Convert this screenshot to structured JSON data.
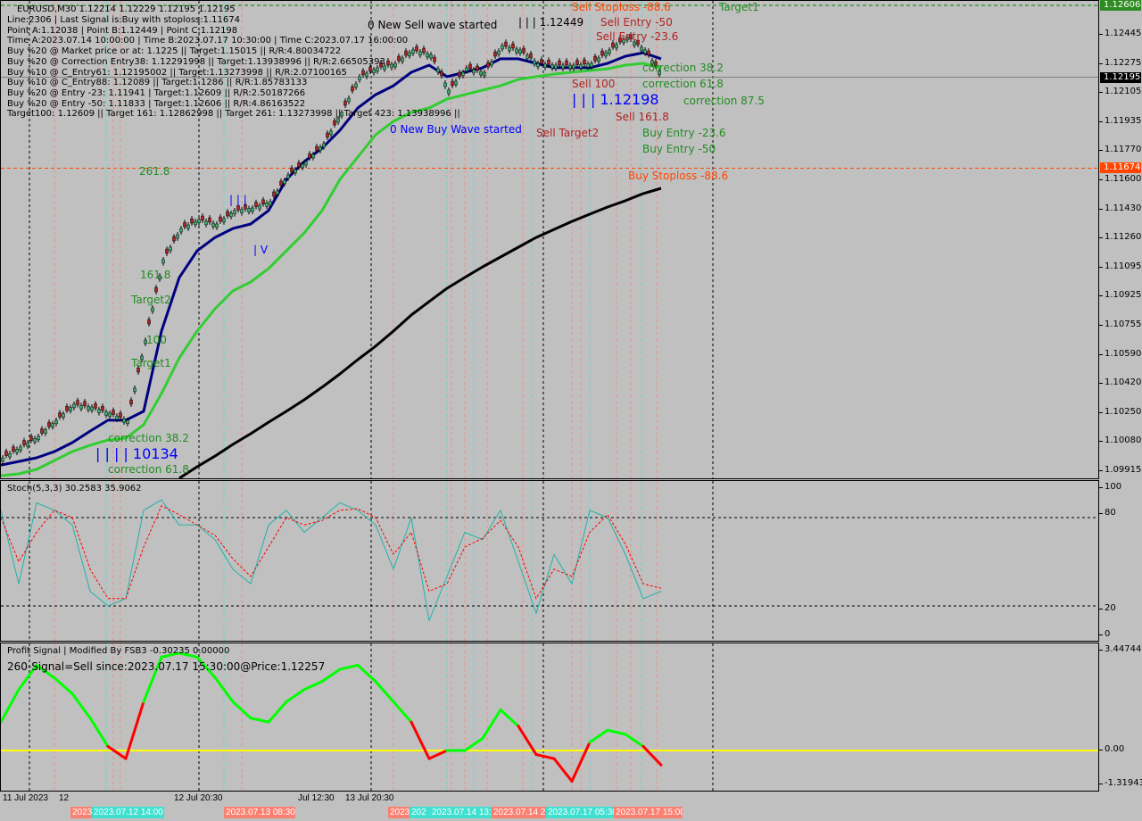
{
  "header": {
    "symbol_line": "EURUSD,M30  1.12214 1.12229 1.12195 1.12195",
    "info_lines": [
      "Line:2306 | Last Signal is:Buy with stoploss:1.11674",
      "Point A:1.12038 | Point B:1.12449 | Point C:1.12198",
      "Time A:2023.07.14 10:00:00 | Time B:2023.07.17 10:30:00 | Time C:2023.07.17 16:00:00",
      "Buy %20 @ Market price or at: 1.1225 || Target:1.15015 || R/R:4.80034722",
      "Buy %20 @ Correction Entry38: 1.12291998 || Target:1.13938996 || R/R:2.66505393",
      "Buy %10 @ C_Entry61: 1.12195002 || Target:1.13273998 || R/R:2.07100165",
      "Buy %10 @ C_Entry88: 1.12089 || Target:1.1286 || R/R:1.85783133",
      "Buy %20 @ Entry -23: 1.11941 | Target:1.12609 || R/R:2.50187266",
      "Buy %20 @ Entry -50: 1.11833 | Target:1.12606 || R/R:4.86163522",
      "Target100: 1.12609 || Target 161: 1.12862998 || Target 261: 1.13273998 || Target 423: 1.13938996 ||"
    ]
  },
  "annotations": {
    "new_sell_wave": "0 New Sell wave started",
    "new_buy_wave": "0 New Buy Wave started",
    "sell_stoploss": "Sell Stoploss -88.6",
    "target_top": "Target1",
    "sell_entry_50": "Sell Entry -50",
    "sell_entry_236": "Sell Entry -23.6",
    "correction_382_r": "correction 38.2",
    "sell_100": "Sell 100",
    "correction_618_r": "correction 61.8",
    "point_c_label": "| | | 1.12198",
    "correction_875_r": "correction 87.5",
    "sell_1618": "Sell 161.8",
    "sell_target2": "Sell Target2",
    "buy_entry_236": "Buy Entry -23.6",
    "buy_entry_50": "Buy Entry -50",
    "buy_stoploss": "Buy Stoploss -88.6",
    "fib_2618": "261.8",
    "fib_1618": "161.8",
    "target2": "Target2",
    "fib_100": "100",
    "target1": "Target1",
    "correction_382_l": "correction 38.2",
    "point_a_label": "| | | | 10134",
    "correction_618_l": "correction 61.8",
    "wave_marks": "| | |",
    "wave_marks_v": "| V",
    "top_marks": "| | | 1.12449"
  },
  "stoch": {
    "title": "Stoch(5,3,3) 30.2583 35.9062",
    "levels": [
      "100",
      "80",
      "20",
      "0"
    ]
  },
  "profit": {
    "title": "Profit Signal | Modified By FSB3 -0.30235 0.00000",
    "signal": "260-Signal=Sell since:2023.07.17 15:30:00@Price:1.12257",
    "levels": [
      "3.44744",
      "0.00",
      "-1.31943"
    ]
  },
  "price_axis": {
    "ticks": [
      "1.12445",
      "1.12275",
      "1.12105",
      "1.11935",
      "1.11770",
      "1.11600",
      "1.11430",
      "1.11260",
      "1.11095",
      "1.10925",
      "1.10755",
      "1.10590",
      "1.10420",
      "1.10250",
      "1.10080",
      "1.09915"
    ],
    "target_price": "1.12606",
    "current_price": "1.12195",
    "stoploss_price": "1.11674"
  },
  "time_axis": {
    "labels": [
      "11 Jul 2023",
      "12",
      "12 Jul 20:30",
      "Jul 12:30",
      "13 Jul 20:30"
    ],
    "boxes": [
      {
        "text": "2023",
        "color": "#fa8072"
      },
      {
        "text": "2023.07.12 14:00",
        "color": "#40e0d0"
      },
      {
        "text": "2023.07.13 08:30",
        "color": "#fa8072"
      },
      {
        "text": "2023",
        "color": "#fa8072"
      },
      {
        "text": "202",
        "color": "#40e0d0"
      },
      {
        "text": "2023.07.14 13:",
        "color": "#40e0d0"
      },
      {
        "text": "2023.07.14 2",
        "color": "#fa8072"
      },
      {
        "text": "2023.07.17 05:30",
        "color": "#40e0d0"
      },
      {
        "text": "2023.07.17 15:00",
        "color": "#fa8072"
      }
    ]
  },
  "colors": {
    "background": "#c0c0c0",
    "fast_ma": "#000080",
    "slow_ma": "#32cd32",
    "long_ma": "#000000",
    "stoch_main": "#20b2aa",
    "stoch_signal": "#ff0000",
    "profit_up": "#00ff00",
    "profit_down": "#ff0000",
    "zero_line": "#ffff00",
    "target_line": "#008000",
    "stoploss_line": "#ff4500"
  },
  "chart_data": [
    {
      "type": "line",
      "panel": "price",
      "ylim": [
        1.09915,
        1.12606
      ],
      "series": [
        {
          "role": "close",
          "values": [
            1.10017,
            1.10079,
            1.1014,
            1.10232,
            1.10324,
            1.10308,
            1.10273,
            1.10232,
            1.10691,
            1.11151,
            1.11329,
            1.11381,
            1.11355,
            1.11432,
            1.11447,
            1.11483,
            1.11636,
            1.11712,
            1.11815,
            1.11993,
            1.12198,
            1.12249,
            1.12274,
            1.12351,
            1.12325,
            1.12121,
            1.12249,
            1.12223,
            1.12376,
            1.12351,
            1.12274,
            1.12264,
            1.12264,
            1.12274,
            1.12351,
            1.12427,
            1.12351,
            1.12198
          ]
        },
        {
          "role": "fast_ma",
          "values": [
            1.09976,
            1.09996,
            1.10017,
            1.10053,
            1.10104,
            1.1017,
            1.10232,
            1.10232,
            1.10283,
            1.10742,
            1.11049,
            1.11202,
            1.11278,
            1.11329,
            1.11355,
            1.11432,
            1.1161,
            1.11712,
            1.11789,
            1.11891,
            1.12019,
            1.12095,
            1.12146,
            1.12223,
            1.12264,
            1.12198,
            1.12223,
            1.12249,
            1.123,
            1.123,
            1.12274,
            1.12249,
            1.12249,
            1.12249,
            1.12274,
            1.12315,
            1.12335,
            1.123
          ]
        },
        {
          "role": "slow_ma",
          "values": [
            1.09915,
            1.09925,
            1.09951,
            1.10002,
            1.10053,
            1.10089,
            1.10119,
            1.1013,
            1.10206,
            1.10385,
            1.10589,
            1.10742,
            1.1087,
            1.10972,
            1.11023,
            1.111,
            1.11202,
            1.11304,
            1.11432,
            1.1161,
            1.11738,
            1.11866,
            1.11942,
            1.11993,
            1.12019,
            1.1207,
            1.12095,
            1.12121,
            1.12146,
            1.12182,
            1.12198,
            1.12213,
            1.12223,
            1.12233,
            1.12243,
            1.12264,
            1.12274,
            1.12249
          ]
        },
        {
          "role": "long_ma",
          "values": [
            null,
            null,
            null,
            null,
            null,
            null,
            null,
            null,
            null,
            null,
            1.099,
            1.09966,
            1.10027,
            1.10094,
            1.10155,
            1.10221,
            1.10283,
            1.10349,
            1.10421,
            1.10497,
            1.10579,
            1.10656,
            1.10742,
            1.10834,
            1.10911,
            1.10987,
            1.11049,
            1.1111,
            1.11166,
            1.11222,
            1.11278,
            1.11324,
            1.1137,
            1.11411,
            1.11452,
            1.11488,
            1.11529,
            1.11559
          ]
        }
      ],
      "hlines": [
        1.12606,
        1.12195,
        1.11674
      ]
    },
    {
      "type": "line",
      "panel": "stochastic",
      "ylim": [
        0,
        100
      ],
      "levels": [
        80,
        20
      ],
      "series": [
        {
          "role": "main",
          "values": [
            85,
            35,
            90,
            85,
            75,
            30,
            20,
            25,
            85,
            92,
            75,
            75,
            65,
            45,
            35,
            75,
            85,
            70,
            80,
            90,
            85,
            75,
            45,
            80,
            10,
            40,
            70,
            65,
            85,
            50,
            15,
            55,
            35,
            85,
            80,
            55,
            25,
            30
          ]
        },
        {
          "role": "signal",
          "values": [
            80,
            50,
            70,
            85,
            80,
            45,
            25,
            25,
            60,
            88,
            82,
            75,
            68,
            52,
            40,
            60,
            80,
            75,
            78,
            85,
            86,
            80,
            55,
            70,
            30,
            35,
            60,
            66,
            78,
            60,
            25,
            45,
            40,
            70,
            82,
            62,
            35,
            32
          ]
        }
      ]
    },
    {
      "type": "line",
      "panel": "profit_signal",
      "ylim": [
        -1.31943,
        3.44744
      ],
      "levels": [
        0
      ],
      "series": [
        {
          "role": "signal",
          "values": [
            0.98,
            2.1,
            2.94,
            2.5,
            1.96,
            1.12,
            0.14,
            -0.28,
            1.68,
            3.22,
            3.36,
            3.22,
            2.52,
            1.68,
            1.12,
            0.98,
            1.68,
            2.1,
            2.38,
            2.8,
            2.94,
            2.38,
            1.68,
            0.98,
            -0.28,
            0,
            0,
            0.42,
            1.4,
            0.84,
            -0.14,
            -0.28,
            -1.06,
            0.28,
            0.7,
            0.56,
            0.14,
            -0.5
          ]
        }
      ]
    }
  ]
}
